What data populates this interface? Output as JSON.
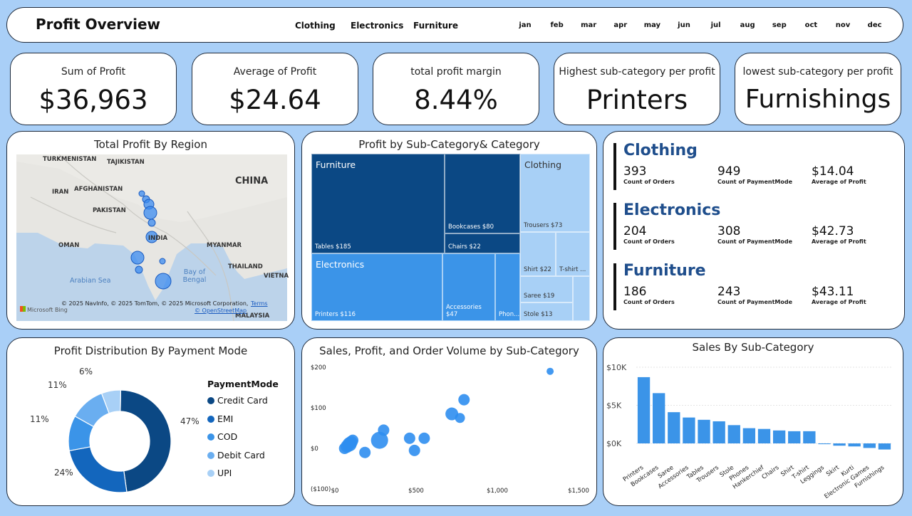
{
  "header": {
    "title": "Profit Overview",
    "categories": [
      "Clothing",
      "Electronics",
      "Furniture"
    ],
    "months": [
      "jan",
      "feb",
      "mar",
      "apr",
      "may",
      "jun",
      "jul",
      "aug",
      "sep",
      "oct",
      "nov",
      "dec"
    ]
  },
  "kpis": [
    {
      "label": "Sum of Profit",
      "value": "$36,963"
    },
    {
      "label": "Average of Profit",
      "value": "$24.64"
    },
    {
      "label": "total profit margin",
      "value": "8.44%"
    },
    {
      "label": "Highest sub-category per profit",
      "value": "Printers"
    },
    {
      "label": "lowest sub-category per profit",
      "value": "Furnishings"
    }
  ],
  "map": {
    "title": "Total Profit By Region",
    "labels": [
      "TURKMENISTAN",
      "TAJIKISTAN",
      "IRAN",
      "AFGHANISTAN",
      "CHINA",
      "PAKISTAN",
      "INDIA",
      "OMAN",
      "MYANMAR",
      "THAILAND",
      "VIETNA",
      "Arabian Sea",
      "Bay of Bengal",
      "MALAYSIA"
    ],
    "attribution": "© 2025 NavInfo, © 2025 TomTom, © 2025 Microsoft Corporation,",
    "terms": "Terms",
    "osm": "© OpenStreetMap",
    "bing": "Microsoft Bing"
  },
  "treemap": {
    "title": "Profit by Sub-Category& Category",
    "groups": [
      "Furniture",
      "Electronics",
      "Clothing"
    ],
    "tiles": [
      "Tables $185",
      "Bookcases $80",
      "Chairs $22",
      "Printers $116",
      "Accessories $47",
      "Phon...",
      "Trousers $73",
      "Shirt $22",
      "T-shirt ...",
      "Saree $19",
      "Stole $13"
    ]
  },
  "categories": [
    {
      "name": "Clothing",
      "orders": "393",
      "payment": "949",
      "avg": "$14.04"
    },
    {
      "name": "Electronics",
      "orders": "204",
      "payment": "308",
      "avg": "$42.73"
    },
    {
      "name": "Furniture",
      "orders": "186",
      "payment": "243",
      "avg": "$43.11"
    }
  ],
  "metric_labels": {
    "orders": "Count of Orders",
    "payment": "Count of PaymentMode",
    "avg": "Average of Profit"
  },
  "payment": {
    "title": "Profit Distribution By Payment Mode",
    "legend_title": "PaymentMode",
    "items": [
      {
        "name": "Credit Card",
        "pct": 47,
        "label": "47%",
        "color": "#0b4884"
      },
      {
        "name": "EMI",
        "pct": 24,
        "label": "24%",
        "color": "#1366bd"
      },
      {
        "name": "COD",
        "pct": 11,
        "label": "11%",
        "color": "#3b94e8"
      },
      {
        "name": "Debit Card",
        "pct": 11,
        "label": "11%",
        "color": "#6aaef0"
      },
      {
        "name": "UPI",
        "pct": 6,
        "label": "6%",
        "color": "#a8d0f6"
      }
    ]
  },
  "chart_data": [
    {
      "type": "scatter",
      "title": "Sales, Profit, and Order Volume by Sub-Category",
      "x_ticks": [
        "$0",
        "$500",
        "$1,000",
        "$1,500"
      ],
      "y_ticks": [
        "$200",
        "$100",
        "$0",
        "($100)"
      ],
      "xlim": [
        0,
        1500
      ],
      "ylim": [
        -100,
        200
      ],
      "points": [
        {
          "x": 60,
          "y": 0,
          "r": 8
        },
        {
          "x": 75,
          "y": 5,
          "r": 9
        },
        {
          "x": 90,
          "y": 10,
          "r": 10
        },
        {
          "x": 100,
          "y": 15,
          "r": 9
        },
        {
          "x": 110,
          "y": 20,
          "r": 8
        },
        {
          "x": 185,
          "y": -10,
          "r": 8
        },
        {
          "x": 275,
          "y": 20,
          "r": 12
        },
        {
          "x": 300,
          "y": 45,
          "r": 8
        },
        {
          "x": 460,
          "y": 25,
          "r": 8
        },
        {
          "x": 490,
          "y": -5,
          "r": 8
        },
        {
          "x": 550,
          "y": 25,
          "r": 8
        },
        {
          "x": 720,
          "y": 85,
          "r": 9
        },
        {
          "x": 770,
          "y": 75,
          "r": 7
        },
        {
          "x": 795,
          "y": 120,
          "r": 8
        },
        {
          "x": 1325,
          "y": 190,
          "r": 5
        }
      ]
    },
    {
      "type": "bar",
      "title": "Sales By Sub-Category",
      "y_ticks": [
        "$10K",
        "$5K",
        "$0K"
      ],
      "ylim": [
        -1000,
        10000
      ],
      "categories": [
        "Printers",
        "Bookcases",
        "Saree",
        "Accessories",
        "Tables",
        "Trousers",
        "Stole",
        "Phones",
        "Hankerchief",
        "Chairs",
        "Shirt",
        "T-shirt",
        "Leggings",
        "Skirt",
        "Kurti",
        "Electronic Games",
        "Furnishings"
      ],
      "values": [
        8700,
        6600,
        4100,
        3400,
        3100,
        2900,
        2400,
        2000,
        1900,
        1700,
        1600,
        1600,
        -100,
        -300,
        -400,
        -600,
        -800
      ],
      "color": "#3b94e8"
    }
  ],
  "sales_title": "Sales By Sub-Category",
  "scatter_title": "Sales, Profit, and Order Volume by Sub-Category"
}
